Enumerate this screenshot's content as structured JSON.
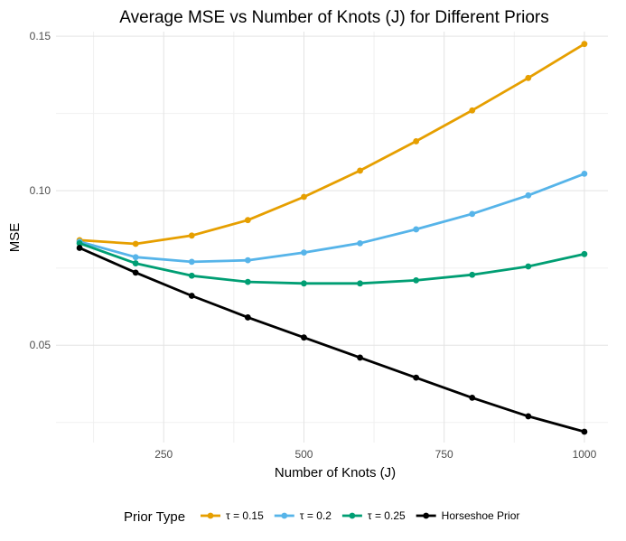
{
  "chart_data": {
    "type": "line",
    "title": "Average MSE vs Number of Knots (J) for Different Priors",
    "xlabel": "Number of Knots (J)",
    "ylabel": "MSE",
    "x": [
      100,
      200,
      300,
      400,
      500,
      600,
      700,
      800,
      900,
      1000
    ],
    "xlim": [
      58,
      1042
    ],
    "ylim": [
      0.0185,
      0.1515
    ],
    "x_ticks": [
      250,
      500,
      750,
      1000
    ],
    "x_tick_labels": [
      "250",
      "500",
      "750",
      "1000"
    ],
    "y_ticks": [
      0.05,
      0.1,
      0.15
    ],
    "y_tick_labels": [
      "0.05",
      "0.10",
      "0.15"
    ],
    "grid": true,
    "legend_title": "Prior Type",
    "legend_position": "bottom",
    "series": [
      {
        "name": "τ = 0.15",
        "color": "#E69F00",
        "values": [
          0.084,
          0.0828,
          0.0855,
          0.0905,
          0.098,
          0.1065,
          0.116,
          0.126,
          0.1365,
          0.1475
        ]
      },
      {
        "name": "τ = 0.2",
        "color": "#56B4E9",
        "values": [
          0.0835,
          0.0785,
          0.077,
          0.0775,
          0.08,
          0.083,
          0.0875,
          0.0925,
          0.0985,
          0.1055
        ]
      },
      {
        "name": "τ = 0.25",
        "color": "#009E73",
        "values": [
          0.083,
          0.0765,
          0.0725,
          0.0705,
          0.07,
          0.07,
          0.071,
          0.0728,
          0.0755,
          0.0795
        ]
      },
      {
        "name": "Horseshoe Prior",
        "color": "#000000",
        "values": [
          0.0815,
          0.0735,
          0.066,
          0.059,
          0.0525,
          0.046,
          0.0395,
          0.033,
          0.027,
          0.022
        ]
      }
    ]
  }
}
